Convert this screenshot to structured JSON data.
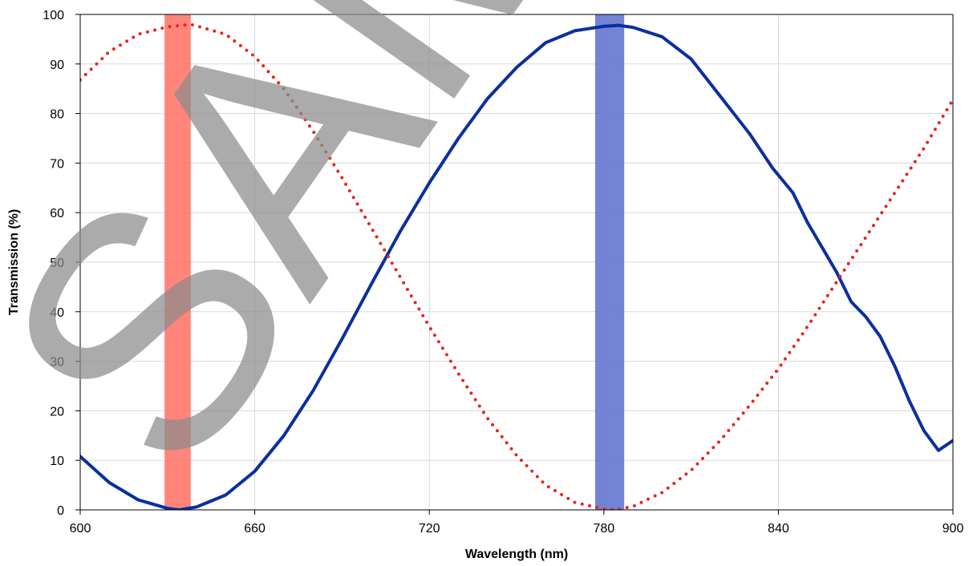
{
  "chart_data": {
    "type": "line",
    "title": "",
    "xlabel": "Wavelength (nm)",
    "ylabel": "Transmission (%)",
    "xlim": [
      600,
      900
    ],
    "ylim": [
      0,
      100
    ],
    "x_ticks": [
      600,
      660,
      720,
      780,
      840,
      900
    ],
    "y_ticks": [
      0,
      10,
      20,
      30,
      40,
      50,
      60,
      70,
      80,
      90,
      100
    ],
    "grid": true,
    "legend": "none",
    "series": [
      {
        "style": "solid",
        "color": "#0a2f9e",
        "x": [
          600,
          610,
          620,
          630,
          634,
          640,
          650,
          660,
          670,
          680,
          690,
          700,
          710,
          720,
          730,
          740,
          750,
          760,
          770,
          780,
          785,
          790,
          800,
          810,
          820,
          830,
          838,
          845,
          850,
          855,
          860,
          865,
          870,
          875,
          880,
          885,
          890,
          895,
          900
        ],
        "y": [
          10.8,
          5.5,
          2.0,
          0.3,
          0.0,
          0.6,
          3.0,
          7.8,
          15.0,
          24.0,
          34.5,
          45.5,
          56.2,
          66.0,
          75.0,
          83.0,
          89.3,
          94.3,
          96.7,
          97.6,
          97.8,
          97.4,
          95.5,
          91.0,
          83.5,
          76.0,
          69.0,
          64.0,
          58.0,
          53.0,
          48.0,
          42.0,
          39.0,
          35.0,
          29.0,
          22.0,
          16.0,
          12.0,
          14.0
        ]
      },
      {
        "style": "dotted",
        "color": "#e8251c",
        "x": [
          600,
          610,
          620,
          630,
          638,
          650,
          660,
          670,
          680,
          690,
          700,
          710,
          720,
          730,
          740,
          750,
          760,
          770,
          780,
          784,
          790,
          800,
          810,
          820,
          830,
          840,
          850,
          860,
          870,
          880,
          890,
          900
        ],
        "y": [
          86.8,
          92.5,
          96.0,
          97.5,
          98.0,
          96.0,
          91.5,
          85.0,
          76.5,
          67.0,
          57.0,
          47.0,
          37.0,
          27.5,
          18.5,
          11.0,
          5.0,
          1.5,
          0.2,
          0.0,
          0.7,
          3.5,
          8.0,
          14.0,
          21.0,
          28.5,
          37.0,
          46.0,
          55.0,
          64.0,
          73.0,
          82.8
        ]
      }
    ],
    "bands": [
      {
        "x_start": 629,
        "x_end": 638,
        "color": "#ff6f61"
      },
      {
        "x_start": 777,
        "x_end": 787,
        "color": "#5a6fcf"
      }
    ]
  },
  "watermark": {
    "text": "SAMPLE"
  },
  "colors": {
    "grid": "#d9d9d9",
    "axis": "#000000"
  }
}
